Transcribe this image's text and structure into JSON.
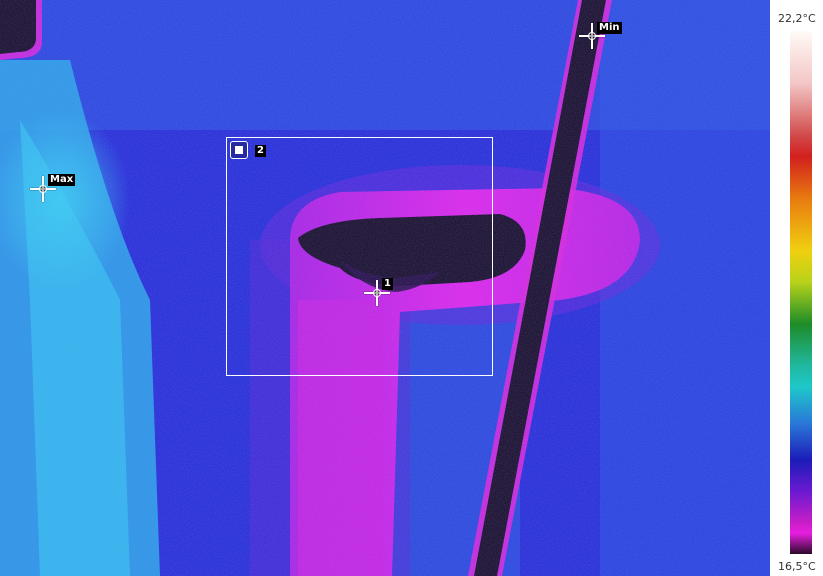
{
  "markers": {
    "max_label": "Max",
    "min_label": "Min",
    "spot_label": "1",
    "roi_label": "2"
  },
  "scale": {
    "max_temp": "22,2°C",
    "min_temp": "16,5°C"
  },
  "colors": {
    "background_blue": "#2a2ad8",
    "cool_magenta": "#e01ee0",
    "coldest_dark": "#1a0820",
    "warm_cyan": "#2ab8e8"
  }
}
